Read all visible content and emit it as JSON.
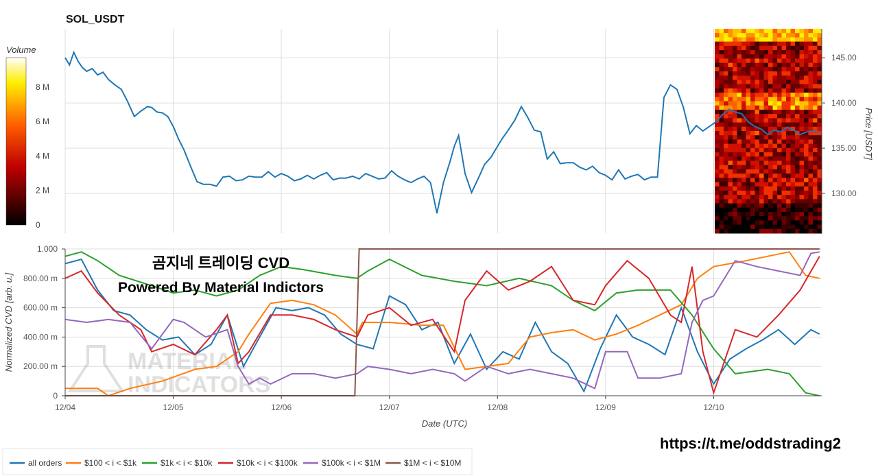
{
  "colors": {
    "grid": "#dddddd",
    "axis": "#444444",
    "price_line": "#1f77b4",
    "series": [
      "#1f77b4",
      "#ff7f0e",
      "#2ca02c",
      "#d62728",
      "#9467bd",
      "#8c564b"
    ]
  },
  "labels": {
    "title": "SOL_USDT",
    "volume_label": "Volume",
    "overlay_line1": "곰지네 트레이딩 CVD",
    "overlay_line2": "Powered By Material Indictors",
    "watermark_line1": "MATERIAL",
    "watermark_line2": "INDICATORS",
    "url": "https://t.me/oddstrading2"
  },
  "chart_data": [
    {
      "type": "line",
      "title": "SOL_USDT",
      "ylabel": "Price [USDT]",
      "xlabel": "Date (UTC)",
      "x_ticks": [
        "12/04",
        "12/05",
        "12/06",
        "12/07",
        "12/08",
        "12/09",
        "12/10"
      ],
      "y_ticks": [
        "130.00",
        "135.00",
        "140.00",
        "145.00"
      ],
      "ylim": [
        125.6,
        148.2
      ],
      "xlim": [
        0,
        7.0
      ],
      "x": [
        0,
        0.04,
        0.08,
        0.12,
        0.16,
        0.2,
        0.25,
        0.3,
        0.35,
        0.4,
        0.46,
        0.52,
        0.58,
        0.64,
        0.7,
        0.76,
        0.8,
        0.85,
        0.9,
        0.95,
        1.0,
        1.05,
        1.1,
        1.16,
        1.22,
        1.28,
        1.34,
        1.4,
        1.46,
        1.52,
        1.58,
        1.64,
        1.7,
        1.76,
        1.82,
        1.88,
        1.94,
        2.0,
        2.06,
        2.12,
        2.18,
        2.24,
        2.3,
        2.36,
        2.42,
        2.48,
        2.54,
        2.6,
        2.66,
        2.72,
        2.78,
        2.84,
        2.9,
        2.96,
        3.02,
        3.08,
        3.14,
        3.2,
        3.26,
        3.32,
        3.38,
        3.44,
        3.5,
        3.56,
        3.6,
        3.64,
        3.7,
        3.76,
        3.82,
        3.88,
        3.94,
        4.0,
        4.04,
        4.1,
        4.16,
        4.22,
        4.28,
        4.34,
        4.4,
        4.46,
        4.52,
        4.58,
        4.64,
        4.7,
        4.76,
        4.82,
        4.88,
        4.94,
        5.0,
        5.06,
        5.12,
        5.18,
        5.24,
        5.3,
        5.36,
        5.42,
        5.48,
        5.54,
        5.6,
        5.66,
        5.72,
        5.78,
        5.84,
        5.9,
        5.96,
        6.02,
        6.08,
        6.14,
        6.2,
        6.26,
        6.32,
        6.38,
        6.44,
        6.5,
        6.56,
        6.62,
        6.68,
        6.74,
        6.8,
        6.86,
        6.92,
        6.98
      ],
      "values": [
        145.0,
        144.2,
        145.6,
        144.6,
        143.9,
        143.5,
        143.8,
        143.1,
        143.4,
        142.6,
        142.0,
        141.5,
        140.1,
        138.5,
        139.1,
        139.6,
        139.5,
        139.0,
        138.9,
        138.5,
        137.4,
        136.0,
        134.8,
        133.0,
        131.3,
        131.0,
        131.0,
        130.8,
        131.8,
        131.9,
        131.4,
        131.5,
        131.9,
        131.8,
        131.8,
        132.4,
        131.8,
        132.2,
        131.9,
        131.4,
        131.6,
        132.0,
        131.6,
        132.0,
        132.3,
        131.5,
        131.7,
        131.7,
        131.9,
        131.6,
        132.2,
        131.9,
        131.6,
        131.7,
        132.5,
        131.9,
        131.5,
        131.2,
        131.6,
        131.9,
        131.2,
        127.8,
        131.2,
        133.5,
        135.2,
        136.4,
        132.2,
        130.1,
        131.6,
        133.2,
        134.0,
        135.2,
        136.0,
        137.0,
        138.1,
        139.6,
        138.4,
        137.0,
        136.8,
        133.8,
        134.6,
        133.3,
        133.4,
        133.4,
        132.9,
        132.6,
        133.0,
        132.3,
        132.0,
        131.5,
        132.6,
        131.6,
        131.9,
        132.1,
        131.5,
        131.8,
        131.8,
        140.6,
        142.0,
        141.5,
        139.5,
        136.6,
        137.5,
        136.9,
        137.4,
        137.9,
        138.7,
        139.3,
        139.0,
        138.8,
        137.9,
        137.4,
        137.1,
        136.5,
        137.0,
        136.8,
        137.3,
        137.0,
        136.5,
        136.8,
        136.9,
        136.7
      ],
      "colorbar": {
        "label": "Volume",
        "ticks": [
          "0",
          "2 M",
          "4 M",
          "6 M",
          "8 M"
        ],
        "range": [
          0,
          9.7
        ]
      }
    },
    {
      "type": "line",
      "title": "Normalized CVD",
      "xlabel": "Date (UTC)",
      "ylabel": "Normalized CVD [arb. u.]",
      "x_ticks": [
        "12/04",
        "12/05",
        "12/06",
        "12/07",
        "12/08",
        "12/09",
        "12/10"
      ],
      "y_ticks": [
        "0",
        "200.00 m",
        "400.00 m",
        "600.00 m",
        "800.00 m",
        "1.000"
      ],
      "ylim": [
        0,
        1.0
      ],
      "xlim": [
        0,
        7.0
      ],
      "series": [
        {
          "name": "all orders",
          "x": [
            0,
            0.15,
            0.3,
            0.45,
            0.6,
            0.75,
            0.9,
            1.05,
            1.2,
            1.35,
            1.5,
            1.65,
            1.8,
            1.95,
            2.1,
            2.25,
            2.4,
            2.55,
            2.7,
            2.85,
            3.0,
            3.15,
            3.3,
            3.45,
            3.6,
            3.75,
            3.9,
            4.05,
            4.2,
            4.35,
            4.5,
            4.65,
            4.8,
            4.95,
            5.1,
            5.25,
            5.4,
            5.55,
            5.7,
            5.85,
            6.0,
            6.15,
            6.3,
            6.45,
            6.6,
            6.75,
            6.9,
            6.98
          ],
          "values": [
            0.9,
            0.93,
            0.72,
            0.58,
            0.55,
            0.45,
            0.38,
            0.4,
            0.28,
            0.35,
            0.55,
            0.2,
            0.4,
            0.6,
            0.58,
            0.6,
            0.55,
            0.42,
            0.35,
            0.32,
            0.68,
            0.62,
            0.45,
            0.5,
            0.22,
            0.42,
            0.18,
            0.3,
            0.25,
            0.5,
            0.3,
            0.22,
            0.03,
            0.32,
            0.55,
            0.4,
            0.35,
            0.28,
            0.6,
            0.3,
            0.08,
            0.25,
            0.32,
            0.38,
            0.45,
            0.35,
            0.45,
            0.42
          ]
        },
        {
          "name": "$100 < i < $1k",
          "x": [
            0,
            0.3,
            0.4,
            0.6,
            0.9,
            1.2,
            1.4,
            1.6,
            1.7,
            1.9,
            2.1,
            2.3,
            2.5,
            2.7,
            2.75,
            3.0,
            3.3,
            3.5,
            3.7,
            3.9,
            4.1,
            4.3,
            4.5,
            4.7,
            4.9,
            5.1,
            5.3,
            5.5,
            5.7,
            5.85,
            6.0,
            6.3,
            6.5,
            6.7,
            6.85,
            6.98
          ],
          "values": [
            0.05,
            0.05,
            0.0,
            0.05,
            0.1,
            0.18,
            0.2,
            0.3,
            0.42,
            0.63,
            0.65,
            0.62,
            0.55,
            0.42,
            0.5,
            0.5,
            0.48,
            0.48,
            0.18,
            0.2,
            0.22,
            0.4,
            0.43,
            0.45,
            0.38,
            0.42,
            0.48,
            0.55,
            0.62,
            0.8,
            0.88,
            0.92,
            0.95,
            0.98,
            0.82,
            0.8
          ]
        },
        {
          "name": "$1k < i < $10k",
          "x": [
            0,
            0.15,
            0.3,
            0.5,
            0.8,
            1.0,
            1.2,
            1.4,
            1.6,
            1.8,
            2.0,
            2.2,
            2.5,
            2.7,
            2.8,
            3.0,
            3.3,
            3.6,
            3.9,
            4.2,
            4.5,
            4.7,
            4.9,
            5.1,
            5.3,
            5.6,
            5.8,
            6.0,
            6.2,
            6.5,
            6.7,
            6.85,
            6.98
          ],
          "values": [
            0.95,
            0.98,
            0.92,
            0.82,
            0.75,
            0.7,
            0.72,
            0.68,
            0.72,
            0.82,
            0.88,
            0.86,
            0.82,
            0.8,
            0.85,
            0.93,
            0.82,
            0.78,
            0.75,
            0.8,
            0.75,
            0.65,
            0.58,
            0.7,
            0.72,
            0.72,
            0.55,
            0.32,
            0.15,
            0.18,
            0.15,
            0.02,
            0.0
          ]
        },
        {
          "name": "$10k < i < $100k",
          "x": [
            0,
            0.15,
            0.3,
            0.5,
            0.7,
            0.8,
            1.0,
            1.2,
            1.4,
            1.5,
            1.6,
            1.7,
            1.9,
            2.1,
            2.3,
            2.5,
            2.7,
            2.8,
            3.0,
            3.2,
            3.4,
            3.6,
            3.7,
            3.9,
            4.1,
            4.3,
            4.5,
            4.7,
            4.9,
            5.0,
            5.2,
            5.4,
            5.6,
            5.7,
            5.8,
            5.9,
            6.0,
            6.2,
            6.4,
            6.6,
            6.8,
            6.98
          ],
          "values": [
            0.8,
            0.85,
            0.7,
            0.55,
            0.45,
            0.3,
            0.35,
            0.28,
            0.45,
            0.55,
            0.22,
            0.3,
            0.55,
            0.55,
            0.52,
            0.45,
            0.4,
            0.55,
            0.6,
            0.48,
            0.52,
            0.3,
            0.65,
            0.85,
            0.72,
            0.78,
            0.88,
            0.65,
            0.62,
            0.75,
            0.92,
            0.8,
            0.55,
            0.5,
            0.88,
            0.3,
            0.02,
            0.45,
            0.4,
            0.55,
            0.72,
            0.95
          ]
        },
        {
          "name": "$100k < i < $1M",
          "x": [
            0,
            0.2,
            0.4,
            0.6,
            0.8,
            1.0,
            1.1,
            1.3,
            1.5,
            1.6,
            1.7,
            1.8,
            1.9,
            2.1,
            2.3,
            2.5,
            2.7,
            2.8,
            3.0,
            3.2,
            3.4,
            3.6,
            3.7,
            3.9,
            4.1,
            4.3,
            4.5,
            4.7,
            4.9,
            5.0,
            5.2,
            5.3,
            5.5,
            5.7,
            5.8,
            5.9,
            6.0,
            6.2,
            6.4,
            6.6,
            6.8,
            6.9,
            6.98
          ],
          "values": [
            0.52,
            0.5,
            0.52,
            0.5,
            0.32,
            0.52,
            0.5,
            0.4,
            0.45,
            0.2,
            0.08,
            0.12,
            0.08,
            0.15,
            0.15,
            0.12,
            0.15,
            0.2,
            0.18,
            0.15,
            0.18,
            0.15,
            0.1,
            0.2,
            0.15,
            0.18,
            0.15,
            0.12,
            0.05,
            0.3,
            0.3,
            0.12,
            0.12,
            0.15,
            0.5,
            0.65,
            0.68,
            0.92,
            0.88,
            0.85,
            0.82,
            0.97,
            0.98
          ]
        },
        {
          "name": "$1M < i < $10M",
          "x": [
            0,
            2.68,
            2.72,
            6.98
          ],
          "values": [
            0,
            0,
            1.0,
            1.0
          ]
        }
      ]
    }
  ]
}
